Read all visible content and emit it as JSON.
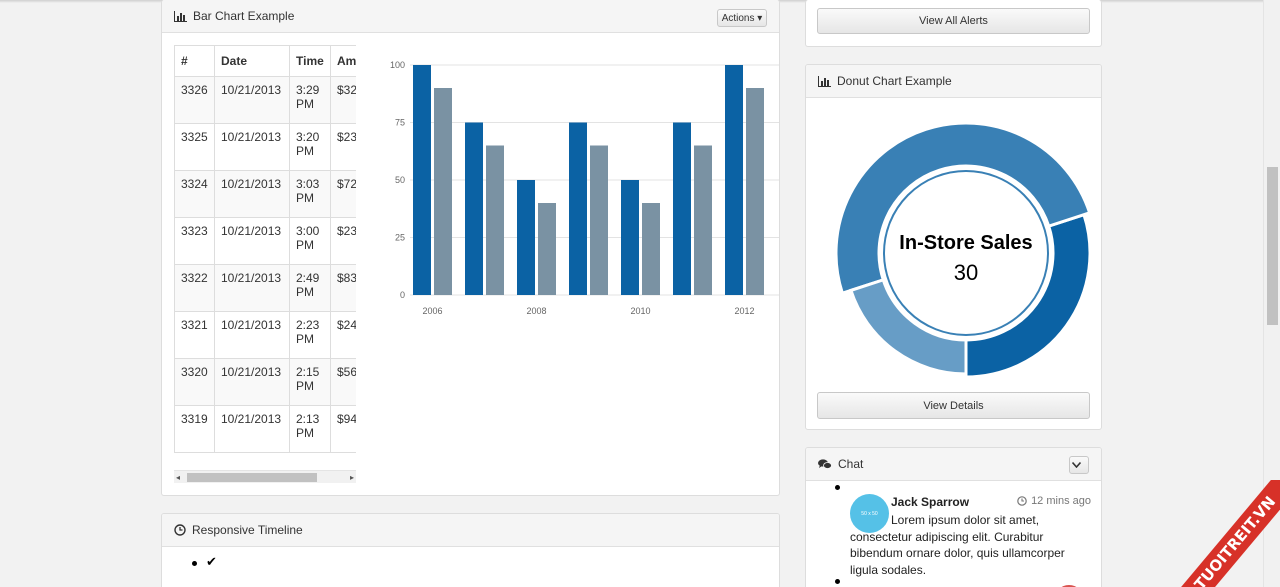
{
  "bar_panel": {
    "title": "Bar Chart Example",
    "actions_label": "Actions ▾",
    "table": {
      "headers": [
        "#",
        "Date",
        "Time",
        "Am"
      ],
      "rows": [
        {
          "id": "3326",
          "date": "10/21/2013",
          "time1": "3:29",
          "time2": "PM",
          "amount": "$32"
        },
        {
          "id": "3325",
          "date": "10/21/2013",
          "time1": "3:20",
          "time2": "PM",
          "amount": "$23"
        },
        {
          "id": "3324",
          "date": "10/21/2013",
          "time1": "3:03",
          "time2": "PM",
          "amount": "$72"
        },
        {
          "id": "3323",
          "date": "10/21/2013",
          "time1": "3:00",
          "time2": "PM",
          "amount": "$23"
        },
        {
          "id": "3322",
          "date": "10/21/2013",
          "time1": "2:49",
          "time2": "PM",
          "amount": "$83"
        },
        {
          "id": "3321",
          "date": "10/21/2013",
          "time1": "2:23",
          "time2": "PM",
          "amount": "$24"
        },
        {
          "id": "3320",
          "date": "10/21/2013",
          "time1": "2:15",
          "time2": "PM",
          "amount": "$56"
        },
        {
          "id": "3319",
          "date": "10/21/2013",
          "time1": "2:13",
          "time2": "PM",
          "amount": "$94"
        }
      ]
    },
    "scrollbar": {
      "left_arrow": "◂",
      "right_arrow": "▸"
    }
  },
  "chart_data": [
    {
      "type": "bar",
      "categories": [
        "2006",
        "2007",
        "2008",
        "2009",
        "2010",
        "2011",
        "2012"
      ],
      "x_tick_labels": [
        "2006",
        "",
        "2008",
        "",
        "2010",
        "",
        "2012"
      ],
      "series": [
        {
          "values": [
            100,
            75,
            50,
            75,
            50,
            75,
            100
          ],
          "color": "#0b62a4"
        },
        {
          "values": [
            90,
            65,
            40,
            65,
            40,
            65,
            90
          ],
          "color": "#7a92a3"
        }
      ],
      "y_ticks": [
        "0",
        "25",
        "50",
        "75",
        "100"
      ],
      "ylim": [
        0,
        100
      ],
      "grid": true
    },
    {
      "type": "pie",
      "title": "In-Store Sales",
      "value_label": "30",
      "highlighted": "In-Store Sales",
      "slices": [
        {
          "value": 30,
          "color": "#0b62a4"
        },
        {
          "value": 50,
          "color": "#3980b5"
        },
        {
          "value": 20,
          "color": "#679dc6"
        }
      ]
    }
  ],
  "alerts": {
    "view_all_label": "View All Alerts"
  },
  "donut_panel": {
    "title": "Donut Chart Example",
    "view_details_label": "View Details"
  },
  "chat": {
    "title": "Chat",
    "messages": [
      {
        "avatar_text": "50 x 50",
        "name": "Jack Sparrow",
        "time": "12 mins ago",
        "text": "Lorem ipsum dolor sit amet, consectetur adipiscing elit. Curabitur bibendum ornare dolor, quis ullamcorper ligula sodales."
      }
    ]
  },
  "timeline": {
    "title": "Responsive Timeline",
    "first_item_glyph": "✔"
  },
  "watermark": "TUOITREIT.VN"
}
